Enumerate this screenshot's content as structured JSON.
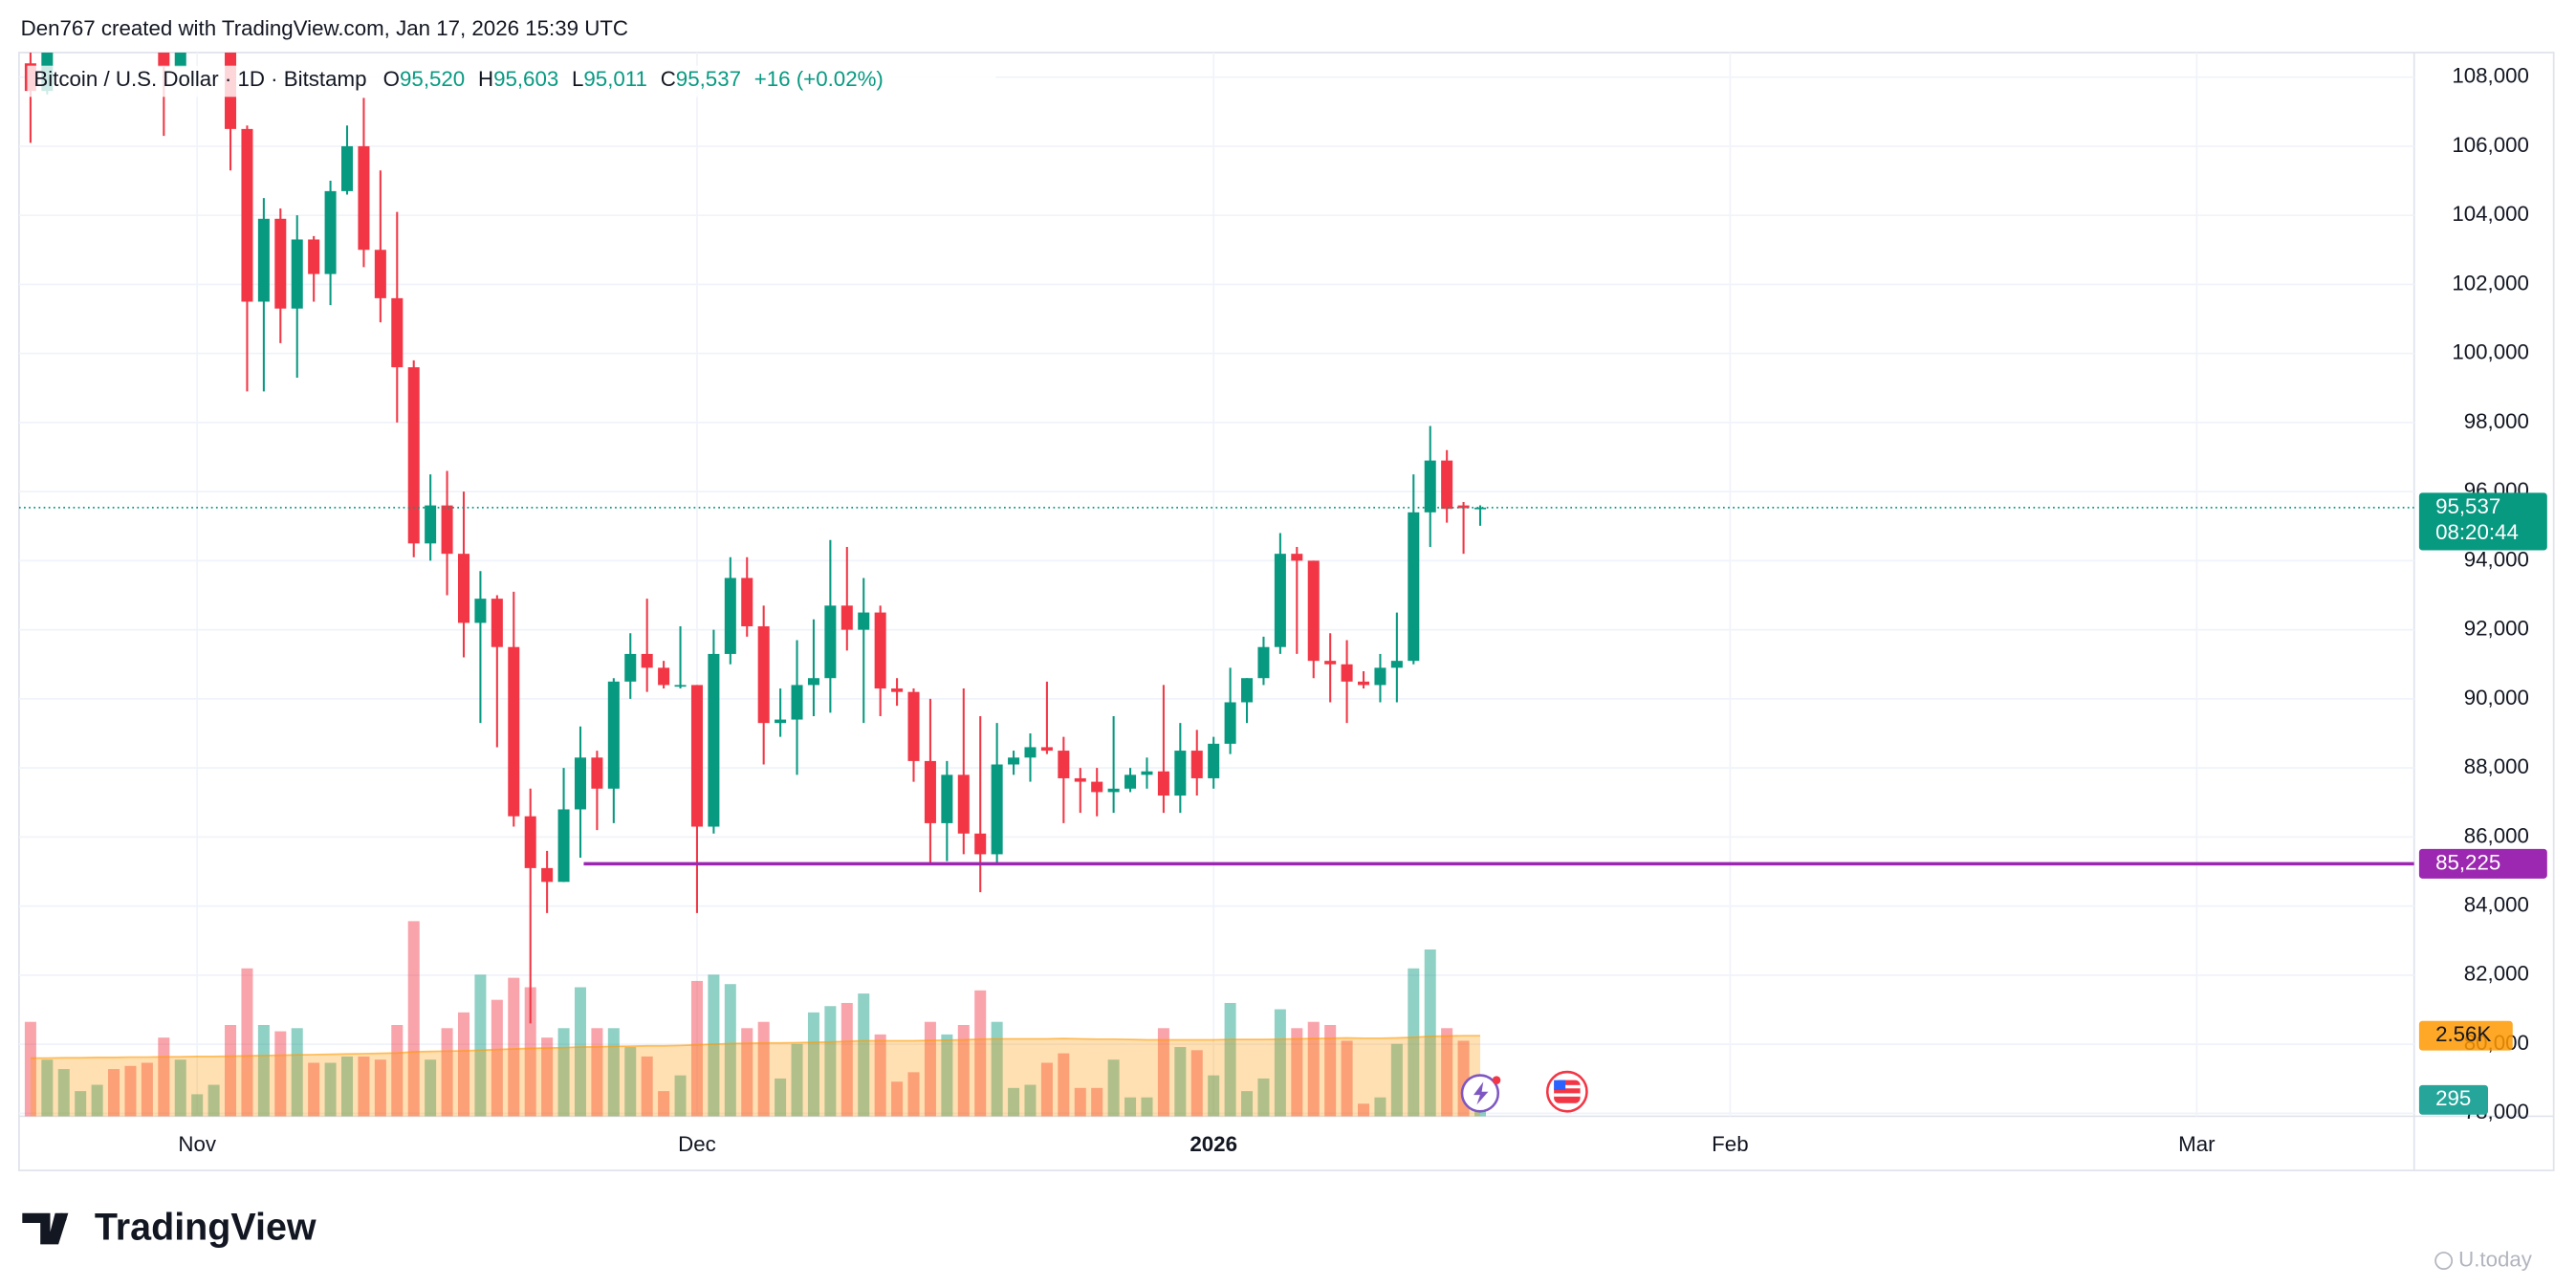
{
  "chart_data": {
    "type": "candlestick",
    "header": "Den767 created with TradingView.com, Jan 17, 2026 15:39 UTC",
    "title": "Bitcoin / U.S. Dollar · 1D · Bitstamp",
    "legend": [
      {
        "prefix": "O",
        "value": 95520,
        "label": "95,520"
      },
      {
        "prefix": "H",
        "value": 95603,
        "label": "95,603"
      },
      {
        "prefix": "L",
        "value": 95011,
        "label": "95,011"
      },
      {
        "prefix": "C",
        "value": 95537,
        "label": "95,537"
      },
      {
        "value": 16,
        "label": "+16 (+0.02%)"
      }
    ],
    "up_color": "#089981",
    "down_color": "#f23645",
    "open": [
      108400,
      107600,
      110100,
      111000,
      111600,
      114500,
      114100,
      112900,
      110000,
      108300,
      109600,
      110100,
      110600,
      106500,
      101500,
      103900,
      101300,
      103300,
      102300,
      104700,
      106000,
      103000,
      101600,
      99600,
      94500,
      95600,
      94200,
      92200,
      92900,
      91500,
      86600,
      85100,
      84700,
      86800,
      88300,
      87400,
      90500,
      91300,
      90900,
      90400,
      90400,
      86300,
      91300,
      93500,
      92100,
      89300,
      89400,
      90400,
      90600,
      92700,
      92000,
      92500,
      90300,
      90200,
      88200,
      86400,
      87800,
      86100,
      85500,
      88100,
      88300,
      88600,
      88500,
      87700,
      87600,
      87300,
      87400,
      87800,
      87900,
      87200,
      88500,
      87700,
      88700,
      89900,
      90600,
      91500,
      94200,
      94000,
      91100,
      91000,
      90500,
      90400,
      90900,
      91100,
      95400,
      96900,
      95600,
      95520
    ],
    "high": [
      109200,
      110300,
      112000,
      111900,
      115000,
      116300,
      116100,
      113600,
      111600,
      111200,
      110600,
      111200,
      110800,
      106600,
      104500,
      104200,
      104000,
      103400,
      105000,
      106600,
      107400,
      105300,
      104100,
      99800,
      96500,
      96600,
      96000,
      93700,
      93000,
      93100,
      87400,
      85600,
      88000,
      89200,
      88500,
      90600,
      91900,
      92900,
      91100,
      92100,
      90400,
      92000,
      94100,
      94100,
      92700,
      90300,
      91700,
      92300,
      94600,
      94400,
      93500,
      92700,
      90600,
      90300,
      90000,
      88200,
      90300,
      89500,
      89300,
      88500,
      89000,
      90500,
      88900,
      88000,
      88000,
      89500,
      88000,
      88300,
      90400,
      89300,
      89100,
      88900,
      90900,
      90600,
      91800,
      94800,
      94400,
      94000,
      91900,
      91700,
      90800,
      91300,
      92500,
      96500,
      97900,
      97200,
      95700,
      95603
    ],
    "low": [
      106100,
      107500,
      109700,
      110600,
      111300,
      113900,
      112300,
      109900,
      106300,
      108300,
      109400,
      109800,
      105300,
      98900,
      98900,
      100300,
      99300,
      101500,
      101400,
      104600,
      102500,
      100900,
      98000,
      94100,
      94000,
      93000,
      91200,
      89300,
      88600,
      86300,
      80600,
      83800,
      84700,
      85400,
      86200,
      86400,
      90000,
      90200,
      90300,
      90300,
      83800,
      86100,
      91000,
      91800,
      88100,
      88900,
      87800,
      89500,
      89600,
      91400,
      89300,
      89500,
      89800,
      87600,
      85200,
      85300,
      85500,
      84400,
      85200,
      87800,
      87600,
      88400,
      86400,
      86700,
      86600,
      86700,
      87300,
      87400,
      86700,
      86700,
      87200,
      87400,
      88400,
      89300,
      90400,
      91300,
      91300,
      90600,
      89900,
      89300,
      90300,
      89900,
      89900,
      91000,
      94400,
      95100,
      94200,
      95011
    ],
    "close": [
      107600,
      110100,
      111000,
      111600,
      114500,
      114100,
      112900,
      110000,
      108300,
      109600,
      110100,
      110600,
      106500,
      101500,
      103900,
      101300,
      103300,
      102300,
      104700,
      106000,
      103000,
      101600,
      99600,
      94500,
      95600,
      94200,
      92200,
      92900,
      91500,
      86600,
      85100,
      84700,
      86800,
      88300,
      87400,
      90500,
      91300,
      90900,
      90400,
      90400,
      86300,
      91300,
      93500,
      92100,
      89300,
      89400,
      90400,
      90600,
      92700,
      92000,
      92500,
      90300,
      90200,
      88200,
      86400,
      87800,
      86100,
      85500,
      88100,
      88300,
      88600,
      88500,
      87700,
      87600,
      87300,
      87400,
      87800,
      87900,
      87200,
      88500,
      87700,
      88700,
      89900,
      90600,
      91500,
      94200,
      94000,
      91100,
      91000,
      90500,
      90400,
      90900,
      91100,
      95400,
      96900,
      95500,
      95520,
      95537
    ],
    "volume": [
      3000,
      1800,
      1500,
      800,
      1000,
      1500,
      1600,
      1700,
      2500,
      1800,
      700,
      1000,
      2900,
      4700,
      2900,
      2700,
      2800,
      1700,
      1700,
      1900,
      1900,
      1800,
      2900,
      6200,
      1800,
      2800,
      3300,
      4500,
      3700,
      4400,
      4100,
      2500,
      2800,
      4100,
      2800,
      2800,
      2200,
      1900,
      800,
      1300,
      4300,
      4500,
      4200,
      2800,
      3000,
      1200,
      2300,
      3300,
      3500,
      3600,
      3900,
      2600,
      1100,
      1400,
      3000,
      2600,
      2900,
      4000,
      3000,
      900,
      1000,
      1700,
      2000,
      900,
      900,
      1800,
      600,
      600,
      2800,
      2200,
      2100,
      1300,
      3600,
      800,
      1200,
      3400,
      2800,
      3000,
      2900,
      2400,
      400,
      600,
      2300,
      4700,
      5300,
      2800,
      2400,
      295
    ],
    "volume_ma": [
      1850,
      1850,
      1860,
      1860,
      1870,
      1870,
      1880,
      1880,
      1890,
      1890,
      1900,
      1900,
      1910,
      1920,
      1930,
      1940,
      1950,
      1960,
      1970,
      1980,
      1990,
      2000,
      2010,
      2050,
      2060,
      2070,
      2080,
      2100,
      2120,
      2140,
      2160,
      2170,
      2180,
      2200,
      2210,
      2220,
      2230,
      2240,
      2240,
      2250,
      2270,
      2290,
      2310,
      2320,
      2330,
      2330,
      2340,
      2350,
      2360,
      2380,
      2400,
      2400,
      2400,
      2400,
      2410,
      2420,
      2430,
      2450,
      2460,
      2460,
      2460,
      2460,
      2470,
      2460,
      2450,
      2450,
      2440,
      2430,
      2430,
      2430,
      2430,
      2430,
      2440,
      2440,
      2440,
      2450,
      2460,
      2470,
      2480,
      2490,
      2480,
      2480,
      2490,
      2510,
      2540,
      2550,
      2560,
      2560
    ],
    "volume_ma_last": {
      "value": 2560,
      "label": "2.56K"
    },
    "ma_color": "#ff9800",
    "last_price": {
      "value": 95537,
      "label": "95,537"
    },
    "countdown": "08:20:44",
    "hline": {
      "value": 85225,
      "label": "85,225",
      "color": "#9c27b0"
    },
    "ylim": [
      77914,
      108713
    ],
    "volume_ylim": [
      0,
      33800
    ],
    "xlim": [
      -0.69,
      143.05
    ],
    "yticks": [
      {
        "value": 78000,
        "label": "78,000"
      },
      {
        "value": 80000,
        "label": "80,000"
      },
      {
        "value": 82000,
        "label": "82,000"
      },
      {
        "value": 84000,
        "label": "84,000"
      },
      {
        "value": 86000,
        "label": "86,000"
      },
      {
        "value": 88000,
        "label": "88,000"
      },
      {
        "value": 90000,
        "label": "90,000"
      },
      {
        "value": 92000,
        "label": "92,000"
      },
      {
        "value": 94000,
        "label": "94,000"
      },
      {
        "value": 96000,
        "label": "96,000"
      },
      {
        "value": 98000,
        "label": "98,000"
      },
      {
        "value": 100000,
        "label": "100,000"
      },
      {
        "value": 102000,
        "label": "102,000"
      },
      {
        "value": 104000,
        "label": "104,000"
      },
      {
        "value": 106000,
        "label": "106,000"
      },
      {
        "value": 108000,
        "label": "108,000"
      }
    ],
    "xticks": [
      {
        "value": 10,
        "label": "Nov"
      },
      {
        "value": 40,
        "label": "Dec"
      },
      {
        "value": 71,
        "label": "2026"
      },
      {
        "value": 102,
        "label": "Feb"
      },
      {
        "value": 130,
        "label": "Mar"
      }
    ],
    "grid": true
  },
  "branding": "TradingView",
  "watermark": "U.today"
}
